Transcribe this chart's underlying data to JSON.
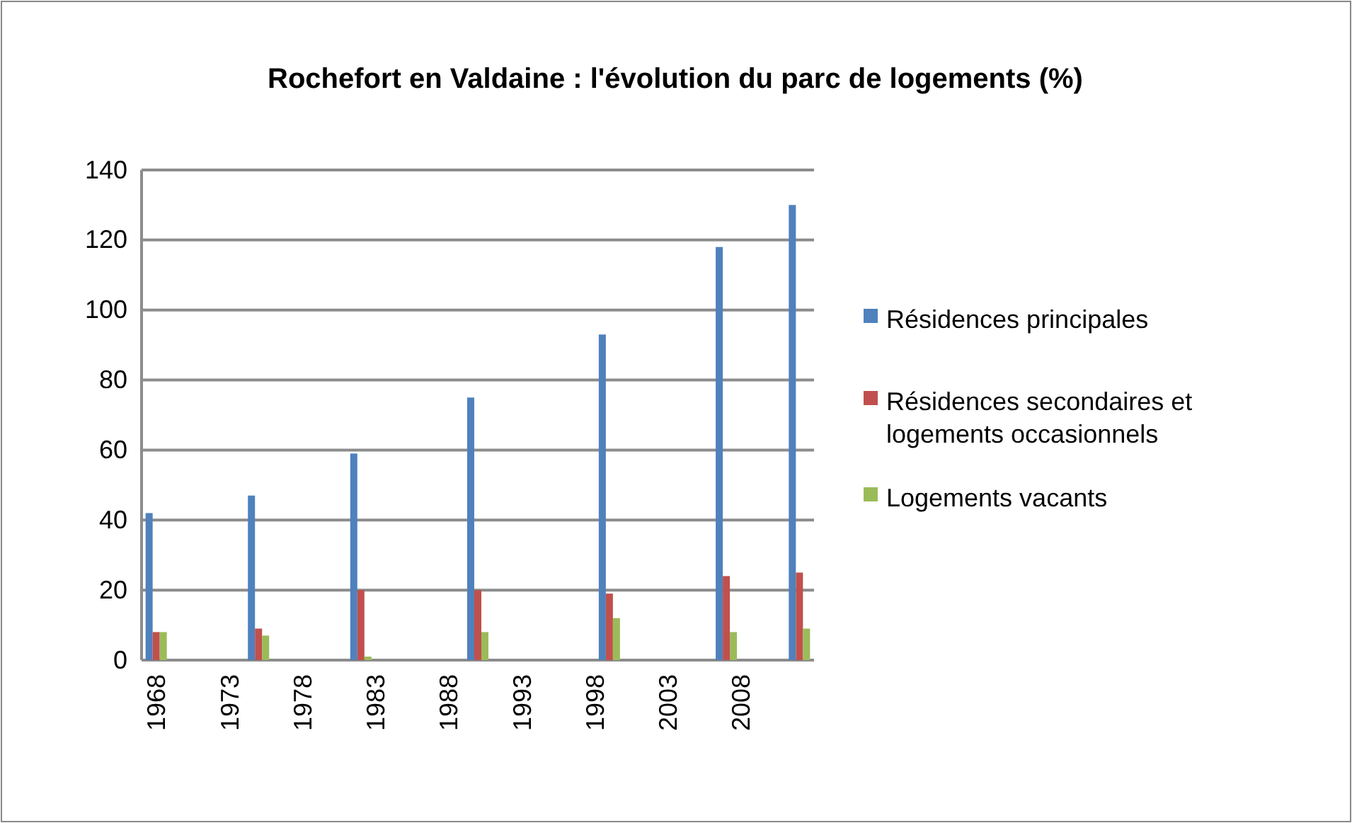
{
  "chart_data": {
    "type": "bar",
    "title": "Rochefort en Valdaine : l'évolution du parc de logements (%)",
    "x": [
      1968,
      1975,
      1982,
      1990,
      1999,
      2007,
      2012
    ],
    "series": [
      {
        "name": "Résidences principales",
        "color": "#4f81bd",
        "values": [
          42,
          47,
          59,
          75,
          93,
          118,
          130
        ]
      },
      {
        "name": "Résidences secondaires et logements occasionnels",
        "color": "#c0504d",
        "values": [
          8,
          9,
          20,
          20,
          19,
          24,
          25
        ]
      },
      {
        "name": "Logements vacants",
        "color": "#9bbb59",
        "values": [
          8,
          7,
          1,
          8,
          12,
          8,
          9
        ]
      }
    ],
    "xlim": [
      1967,
      2013
    ],
    "xticks": [
      1968,
      1973,
      1978,
      1983,
      1988,
      1993,
      1998,
      2003,
      2008
    ],
    "ylim": [
      0,
      140
    ],
    "yticks": [
      0,
      20,
      40,
      60,
      80,
      100,
      120,
      140
    ],
    "grid": "y",
    "legend": "right"
  }
}
